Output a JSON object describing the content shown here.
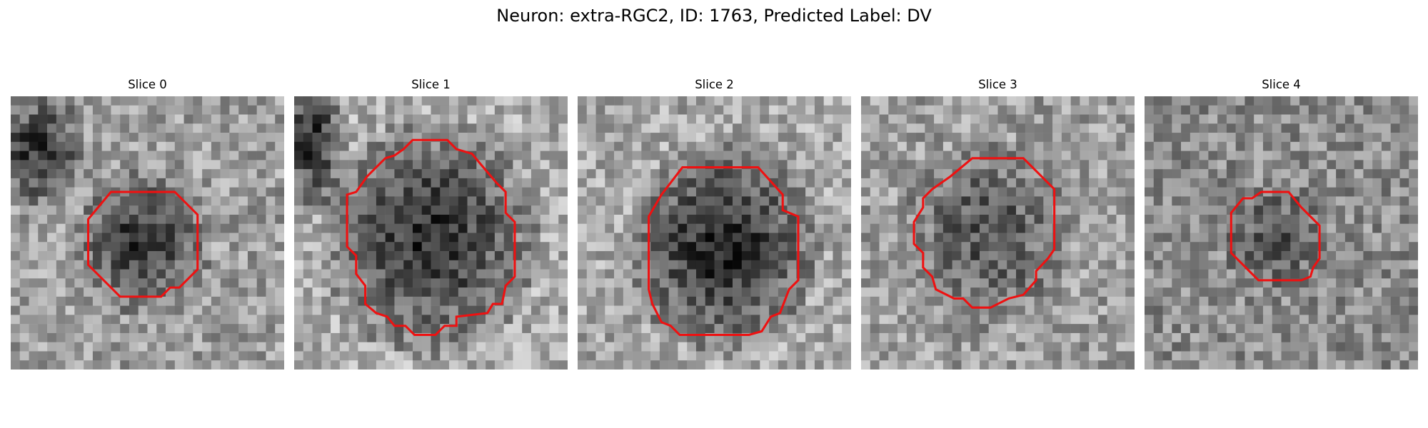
{
  "figure": {
    "title": "Neuron: extra-RGC2, ID: 1763, Predicted Label: DV"
  },
  "panels": [
    {
      "title": "Slice 0",
      "bg_seed": 11,
      "bg_mean": 0.62,
      "dark_strength": 0.42,
      "contour_color": "#ee1111"
    },
    {
      "title": "Slice 1",
      "bg_seed": 23,
      "bg_mean": 0.68,
      "dark_strength": 0.5,
      "contour_color": "#ee1111"
    },
    {
      "title": "Slice 2",
      "bg_seed": 37,
      "bg_mean": 0.66,
      "dark_strength": 0.52,
      "contour_color": "#ee1111"
    },
    {
      "title": "Slice 3",
      "bg_seed": 41,
      "bg_mean": 0.62,
      "dark_strength": 0.3,
      "contour_color": "#ee1111"
    },
    {
      "title": "Slice 4",
      "bg_seed": 53,
      "bg_mean": 0.55,
      "dark_strength": 0.22,
      "contour_color": "#ee1111"
    }
  ]
}
